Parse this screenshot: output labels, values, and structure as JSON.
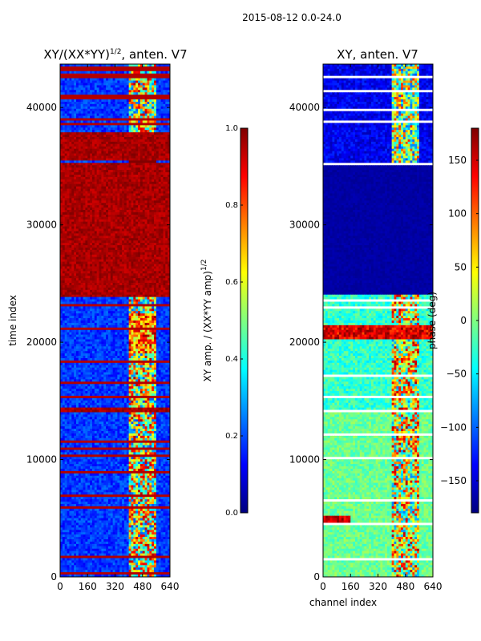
{
  "chart_data": [
    {
      "type": "heatmap",
      "suptitle": "2015-08-12 0.0-24.0",
      "title_main": "XY/(XX*YY)",
      "title_exp": "1/2",
      "title_suffix": ", anten. V7",
      "xlabel": "",
      "ylabel": "time index",
      "xlim": [
        0,
        640
      ],
      "ylim": [
        0,
        43700
      ],
      "x_ticks": [
        0,
        160,
        320,
        480,
        640
      ],
      "y_ticks": [
        0,
        10000,
        20000,
        30000,
        40000
      ],
      "colorbar": {
        "label_main": "XY amp. / (XX*YY amp)",
        "label_exp": "1/2",
        "range": [
          0.0,
          1.0
        ],
        "ticks": [
          "0.0",
          "0.2",
          "0.4",
          "0.6",
          "0.8",
          "1.0"
        ],
        "tick_values": [
          0.0,
          0.2,
          0.4,
          0.6,
          0.8,
          1.0
        ],
        "colormap": "jet"
      },
      "regions": [
        {
          "y0": 0,
          "y1": 4600,
          "value": 0.22,
          "note": "mostly low amplitude"
        },
        {
          "y0": 4600,
          "y1": 14000,
          "value": 0.2,
          "note": "low amplitude with thin flagged lines"
        },
        {
          "y0": 14000,
          "y1": 14400,
          "value": 1.0,
          "note": "saturated band"
        },
        {
          "y0": 14400,
          "y1": 23800,
          "value": 0.2,
          "note": "low amplitude, structured 400-560"
        },
        {
          "y0": 23800,
          "y1": 35200,
          "value": 1.0,
          "note": "saturated block"
        },
        {
          "y0": 35400,
          "y1": 37800,
          "value": 1.0,
          "note": "saturated block"
        },
        {
          "y0": 37800,
          "y1": 43700,
          "value": 0.15,
          "note": "low amplitude with flagged lines"
        }
      ]
    },
    {
      "type": "heatmap",
      "title": "XY, anten. V7",
      "xlabel": "channel index",
      "ylabel": "",
      "xlim": [
        0,
        640
      ],
      "ylim": [
        0,
        43700
      ],
      "x_ticks": [
        0,
        160,
        320,
        480,
        640
      ],
      "y_ticks": [
        0,
        10000,
        20000,
        30000,
        40000
      ],
      "colorbar": {
        "label": "phase (deg)",
        "range": [
          -180,
          180
        ],
        "ticks": [
          "−150",
          "−100",
          "−50",
          "0",
          "50",
          "100",
          "150"
        ],
        "tick_values": [
          -150,
          -100,
          -50,
          0,
          50,
          100,
          150
        ],
        "colormap": "jet"
      },
      "regions": [
        {
          "y0": 0,
          "y1": 14000,
          "value": -40,
          "note": "light phase, structured 400-560"
        },
        {
          "y0": 14000,
          "y1": 24000,
          "value": -60,
          "note": "varied phase, red band near 21000"
        },
        {
          "y0": 24000,
          "y1": 35100,
          "value": -180,
          "note": "uniform dark blue"
        },
        {
          "y0": 35100,
          "y1": 43700,
          "value": -130,
          "note": "dark with light lines"
        }
      ]
    }
  ],
  "colors": {
    "jet_dark_blue": "#00007f",
    "jet_blue": "#0000ff",
    "jet_cyan": "#00ffff",
    "jet_yellow": "#ffff00",
    "jet_red": "#ff0000",
    "jet_dark_red": "#7f0000"
  }
}
